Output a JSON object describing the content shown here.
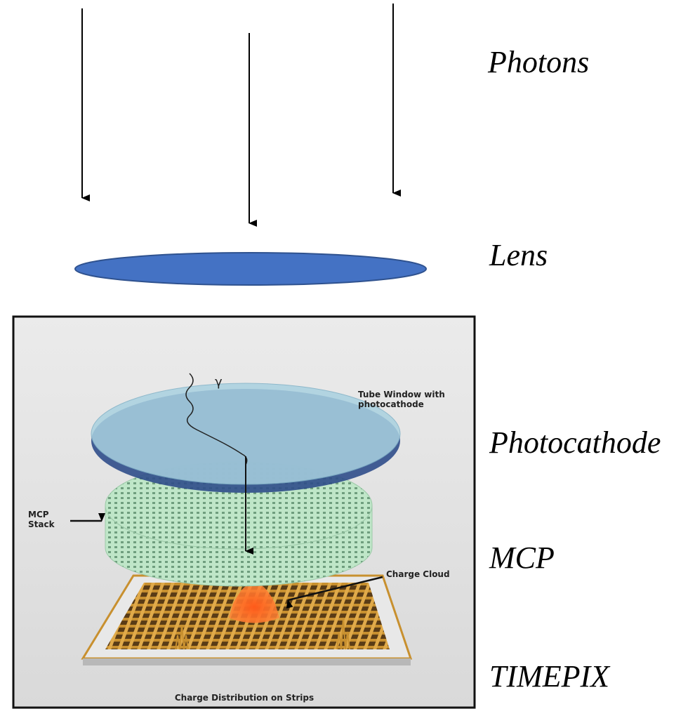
{
  "labels": {
    "photons": "Photons",
    "lens": "Lens",
    "photocathode": "Photocathode",
    "mcp": "MCP",
    "timepix": "TIMEPIX"
  },
  "inset": {
    "gamma": "γ",
    "tube_window": [
      "Tube Window with",
      "photocathode"
    ],
    "mcp_stack": [
      "MCP",
      "Stack"
    ],
    "charge_cloud": "Charge Cloud",
    "charge_distribution": "Charge Distribution on Strips"
  }
}
